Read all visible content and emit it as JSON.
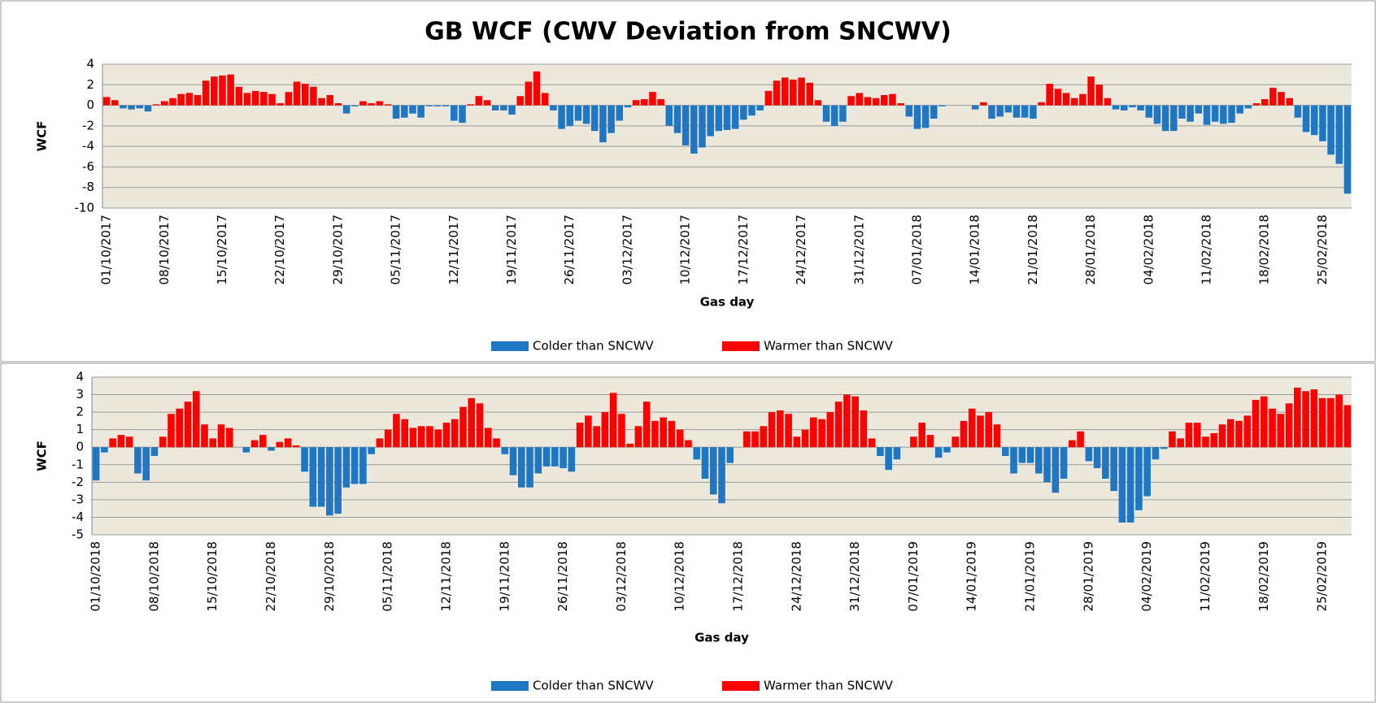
{
  "chart_data": [
    {
      "type": "bar",
      "title": "GB WCF (CWV Deviation from SNCWV)",
      "y_label": "WCF",
      "x_label": "Gas day",
      "legend": [
        {
          "name": "Colder than SNCWV",
          "color": "#1f77c4"
        },
        {
          "name": "Warmer than SNCWV",
          "color": "#ff0000"
        }
      ],
      "ylim": [
        -10,
        4
      ],
      "yticks": [
        4,
        2,
        0,
        -2,
        -4,
        -6,
        -8,
        -10
      ],
      "grid": true,
      "categories": [
        "01/10/2017",
        null,
        null,
        null,
        null,
        null,
        null,
        "08/10/2017",
        null,
        null,
        null,
        null,
        null,
        null,
        "15/10/2017",
        null,
        null,
        null,
        null,
        null,
        null,
        "22/10/2017",
        null,
        null,
        null,
        null,
        null,
        null,
        "29/10/2017",
        null,
        null,
        null,
        null,
        null,
        null,
        "05/11/2017",
        null,
        null,
        null,
        null,
        null,
        null,
        "12/11/2017",
        null,
        null,
        null,
        null,
        null,
        null,
        "19/11/2017",
        null,
        null,
        null,
        null,
        null,
        null,
        "26/11/2017",
        null,
        null,
        null,
        null,
        null,
        null,
        "03/12/2017",
        null,
        null,
        null,
        null,
        null,
        null,
        "10/12/2017",
        null,
        null,
        null,
        null,
        null,
        null,
        "17/12/2017",
        null,
        null,
        null,
        null,
        null,
        null,
        "24/12/2017",
        null,
        null,
        null,
        null,
        null,
        null,
        "31/12/2017",
        null,
        null,
        null,
        null,
        null,
        null,
        "07/01/2018",
        null,
        null,
        null,
        null,
        null,
        null,
        "14/01/2018",
        null,
        null,
        null,
        null,
        null,
        null,
        "21/01/2018",
        null,
        null,
        null,
        null,
        null,
        null,
        "28/01/2018",
        null,
        null,
        null,
        null,
        null,
        null,
        "04/02/2018",
        null,
        null,
        null,
        null,
        null,
        null,
        "11/02/2018",
        null,
        null,
        null,
        null,
        null,
        null,
        "18/02/2018",
        null,
        null,
        null,
        null,
        null,
        null,
        "25/02/2018",
        null,
        null,
        null
      ],
      "values": [
        0.8,
        0.5,
        -0.3,
        -0.4,
        -0.3,
        -0.6,
        0.1,
        0.4,
        0.7,
        1.1,
        1.2,
        1.0,
        2.4,
        2.8,
        2.9,
        3.0,
        1.8,
        1.2,
        1.4,
        1.3,
        1.1,
        0.2,
        1.3,
        2.3,
        2.1,
        1.8,
        0.7,
        1.0,
        0.2,
        -0.8,
        -0.1,
        0.4,
        0.2,
        0.4,
        0.1,
        -1.3,
        -1.2,
        -0.8,
        -1.2,
        -0.1,
        -0.1,
        -0.1,
        -1.5,
        -1.7,
        0.1,
        0.9,
        0.5,
        -0.5,
        -0.5,
        -0.9,
        0.9,
        2.3,
        3.3,
        1.2,
        -0.5,
        -2.3,
        -2.0,
        -1.5,
        -1.8,
        -2.5,
        -3.6,
        -2.7,
        -1.5,
        -0.2,
        0.5,
        0.6,
        1.3,
        0.6,
        -2.0,
        -2.7,
        -3.9,
        -4.7,
        -4.1,
        -3.0,
        -2.5,
        -2.4,
        -2.3,
        -1.4,
        -1.0,
        -0.5,
        1.4,
        2.4,
        2.7,
        2.5,
        2.7,
        2.2,
        0.5,
        -1.6,
        -2.0,
        -1.6,
        0.9,
        1.2,
        0.8,
        0.7,
        1.0,
        1.1,
        0.2,
        -1.1,
        -2.3,
        -2.2,
        -1.3,
        -0.1,
        0,
        0,
        0,
        -0.4,
        0.3,
        -1.3,
        -1.1,
        -0.7,
        -1.2,
        -1.2,
        -1.3,
        0.3,
        2.1,
        1.6,
        1.2,
        0.7,
        1.1,
        2.8,
        2.0,
        0.7,
        -0.4,
        -0.5,
        -0.2,
        -0.5,
        -1.2,
        -1.8,
        -2.5,
        -2.5,
        -1.3,
        -1.6,
        -0.8,
        -1.9,
        -1.6,
        -1.8,
        -1.7,
        -0.8,
        -0.3,
        0.2,
        0.6,
        1.7,
        1.3,
        0.7,
        -1.2,
        -2.6,
        -2.9,
        -3.5,
        -4.8,
        -5.7,
        -8.6
      ]
    },
    {
      "type": "bar",
      "y_label": "WCF",
      "x_label": "Gas day",
      "legend": [
        {
          "name": "Colder than SNCWV",
          "color": "#1f77c4"
        },
        {
          "name": "Warmer than SNCWV",
          "color": "#ff0000"
        }
      ],
      "ylim": [
        -5,
        4
      ],
      "yticks": [
        4,
        3,
        2,
        1,
        0,
        -1,
        -2,
        -3,
        -4,
        -5
      ],
      "grid": true,
      "categories": [
        "01/10/2018",
        null,
        null,
        null,
        null,
        null,
        null,
        "08/10/2018",
        null,
        null,
        null,
        null,
        null,
        null,
        "15/10/2018",
        null,
        null,
        null,
        null,
        null,
        null,
        "22/10/2018",
        null,
        null,
        null,
        null,
        null,
        null,
        "29/10/2018",
        null,
        null,
        null,
        null,
        null,
        null,
        "05/11/2018",
        null,
        null,
        null,
        null,
        null,
        null,
        "12/11/2018",
        null,
        null,
        null,
        null,
        null,
        null,
        "19/11/2018",
        null,
        null,
        null,
        null,
        null,
        null,
        "26/11/2018",
        null,
        null,
        null,
        null,
        null,
        null,
        "03/12/2018",
        null,
        null,
        null,
        null,
        null,
        null,
        "10/12/2018",
        null,
        null,
        null,
        null,
        null,
        null,
        "17/12/2018",
        null,
        null,
        null,
        null,
        null,
        null,
        "24/12/2018",
        null,
        null,
        null,
        null,
        null,
        null,
        "31/12/2018",
        null,
        null,
        null,
        null,
        null,
        null,
        "07/01/2019",
        null,
        null,
        null,
        null,
        null,
        null,
        "14/01/2019",
        null,
        null,
        null,
        null,
        null,
        null,
        "21/01/2019",
        null,
        null,
        null,
        null,
        null,
        null,
        "28/01/2019",
        null,
        null,
        null,
        null,
        null,
        null,
        "04/02/2019",
        null,
        null,
        null,
        null,
        null,
        null,
        "11/02/2019",
        null,
        null,
        null,
        null,
        null,
        null,
        "18/02/2019",
        null,
        null,
        null,
        null,
        null,
        null,
        "25/02/2019",
        null,
        null,
        null
      ],
      "values": [
        -1.9,
        -0.3,
        0.5,
        0.7,
        0.6,
        -1.5,
        -1.9,
        -0.5,
        0.6,
        1.9,
        2.2,
        2.6,
        3.2,
        1.3,
        0.5,
        1.3,
        1.1,
        0,
        -0.3,
        0.4,
        0.7,
        -0.2,
        0.3,
        0.5,
        0.1,
        -1.4,
        -3.4,
        -3.4,
        -3.9,
        -3.8,
        -2.3,
        -2.1,
        -2.1,
        -0.4,
        0.5,
        1.0,
        1.9,
        1.6,
        1.1,
        1.2,
        1.2,
        1.0,
        1.4,
        1.6,
        2.3,
        2.8,
        2.5,
        1.1,
        0.5,
        -0.4,
        -1.6,
        -2.3,
        -2.3,
        -1.5,
        -1.1,
        -1.1,
        -1.2,
        -1.4,
        1.4,
        1.8,
        1.2,
        2.0,
        3.1,
        1.9,
        0.2,
        1.2,
        2.6,
        1.5,
        1.7,
        1.5,
        1.0,
        0.4,
        -0.7,
        -1.8,
        -2.7,
        -3.2,
        -0.9,
        0,
        0.9,
        0.9,
        1.2,
        2.0,
        2.1,
        1.9,
        0.6,
        1.0,
        1.7,
        1.6,
        2.0,
        2.6,
        3.0,
        2.9,
        2.1,
        0.5,
        -0.5,
        -1.3,
        -0.7,
        0,
        0.6,
        1.4,
        0.7,
        -0.6,
        -0.3,
        0.6,
        1.5,
        2.2,
        1.8,
        2.0,
        1.3,
        -0.5,
        -1.5,
        -0.9,
        -0.9,
        -1.5,
        -2.0,
        -2.6,
        -1.8,
        0.4,
        0.9,
        -0.8,
        -1.2,
        -1.8,
        -2.5,
        -4.3,
        -4.3,
        -3.6,
        -2.8,
        -0.7,
        -0.1,
        0.9,
        0.5,
        1.4,
        1.4,
        0.6,
        0.8,
        1.3,
        1.6,
        1.5,
        1.8,
        2.7,
        2.9,
        2.2,
        1.9,
        2.5,
        3.4,
        3.2,
        3.3,
        2.8,
        2.8,
        3.0,
        2.4
      ]
    }
  ]
}
